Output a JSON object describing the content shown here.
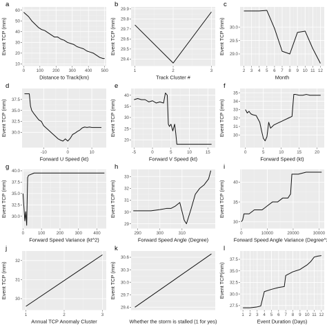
{
  "chart_data": [
    {
      "letter": "a",
      "type": "line",
      "xlabel": "Distance to Track(km)",
      "ylabel": "Event TCP (mm)",
      "xlim": [
        -10,
        510
      ],
      "ylim": [
        8,
        63
      ],
      "xticks": [
        0,
        100,
        200,
        300,
        400,
        500
      ],
      "yticks": [
        10,
        20,
        30,
        40,
        50,
        60
      ],
      "x": [
        0,
        15,
        30,
        50,
        70,
        90,
        110,
        130,
        150,
        170,
        190,
        210,
        230,
        250,
        270,
        290,
        310,
        330,
        350,
        370,
        390,
        410,
        430,
        450,
        470,
        490,
        500
      ],
      "y": [
        58,
        56,
        54,
        50,
        47,
        44,
        42,
        41,
        39,
        37,
        35,
        35,
        33,
        32,
        30,
        29,
        28,
        26,
        25,
        24,
        22,
        21,
        20,
        18,
        16,
        15,
        15
      ]
    },
    {
      "letter": "b",
      "type": "line",
      "xlabel": "Track Cluster #",
      "ylabel": "Event TCP (mm)",
      "xlim": [
        0.9,
        3.1
      ],
      "ylim": [
        29.33,
        29.92
      ],
      "xticks": [
        1,
        2,
        3
      ],
      "yticks": [
        29.4,
        29.5,
        29.6,
        29.7,
        29.8,
        29.9
      ],
      "x": [
        1,
        2,
        3
      ],
      "y": [
        29.74,
        29.36,
        29.87
      ]
    },
    {
      "letter": "c",
      "type": "line",
      "xlabel": "Month",
      "ylabel": "Event TCP (mm)",
      "xlim": [
        1.5,
        12.5
      ],
      "ylim": [
        28.55,
        30.75
      ],
      "xticks": [
        2,
        3,
        4,
        5,
        6,
        7,
        8,
        9,
        10,
        11,
        12
      ],
      "yticks": [
        29.0,
        29.5,
        30.0
      ],
      "x": [
        2,
        3,
        4,
        5,
        6,
        7,
        8,
        9,
        10,
        11,
        12
      ],
      "y": [
        30.6,
        30.6,
        30.6,
        30.62,
        29.95,
        29.1,
        29.0,
        29.8,
        29.85,
        29.2,
        28.65
      ]
    },
    {
      "letter": "d",
      "type": "line",
      "xlabel": "Forward U Speed (kt)",
      "ylabel": "Event TCP (mm)",
      "xlim": [
        -19,
        16
      ],
      "ylim": [
        26.5,
        40
      ],
      "xticks": [
        -10,
        0,
        10
      ],
      "yticks": [
        30.0,
        32.5,
        35.0,
        37.5
      ],
      "x": [
        -18,
        -16,
        -15.5,
        -15,
        -14,
        -13,
        -12,
        -11,
        -10,
        -9,
        -8,
        -7,
        -6,
        -5,
        -4,
        -3,
        -2,
        -1,
        0,
        1,
        2,
        3,
        4,
        5,
        6,
        7,
        8,
        9,
        10,
        11,
        12,
        13,
        14
      ],
      "y": [
        38.8,
        38.8,
        36,
        35,
        34.2,
        33.5,
        32.8,
        32.5,
        31.5,
        31,
        30.5,
        30,
        29.5,
        29,
        28.5,
        28.2,
        28,
        28.5,
        28,
        28.6,
        29.5,
        29.8,
        30.2,
        30.5,
        31,
        31.2,
        31.1,
        31.2,
        31.1,
        31.1,
        31.1,
        31.1,
        31.1
      ]
    },
    {
      "letter": "e",
      "type": "line",
      "xlabel": "Forward V Speed (kt)",
      "ylabel": "Event TCP (mm)",
      "xlim": [
        -5.8,
        17
      ],
      "ylim": [
        16.5,
        43
      ],
      "xticks": [
        -5,
        0,
        5,
        10,
        15
      ],
      "yticks": [
        20,
        25,
        30,
        35,
        40
      ],
      "x": [
        -5,
        -4,
        -3,
        -2,
        -1,
        0,
        1,
        2,
        3,
        3.5,
        4,
        4.3,
        4.6,
        5,
        5.5,
        6,
        6.3,
        6.6,
        7,
        8,
        10,
        12,
        14,
        16
      ],
      "y": [
        38,
        38.5,
        38,
        38,
        37,
        37.5,
        36.5,
        37,
        36.5,
        41,
        40,
        27,
        26,
        27,
        24,
        27,
        23,
        18,
        18,
        18,
        18,
        18,
        18,
        18
      ]
    },
    {
      "letter": "f",
      "type": "line",
      "xlabel": "Forward Speed (kt)",
      "ylabel": "Event TCP (mm)",
      "xlim": [
        -1.5,
        22
      ],
      "ylim": [
        28.5,
        35.5
      ],
      "xticks": [
        0,
        5,
        10,
        15,
        20
      ],
      "yticks": [
        30,
        31,
        32,
        33,
        34,
        35
      ],
      "x": [
        0,
        0.5,
        1,
        1.5,
        2,
        3,
        4,
        4.5,
        5,
        5.5,
        6,
        6.5,
        7,
        8,
        9,
        10,
        11,
        12,
        13,
        13.5,
        14,
        15,
        16,
        17,
        18,
        19,
        20,
        21
      ],
      "y": [
        33,
        32.6,
        32.8,
        32.5,
        32.4,
        32.3,
        31.5,
        30.5,
        29.6,
        29.3,
        29.8,
        31.5,
        30.8,
        31.2,
        31.4,
        31.6,
        31.8,
        32,
        32.2,
        34.8,
        34.8,
        34.7,
        34.7,
        34.8,
        34.7,
        34.7,
        34.7,
        34.7
      ]
    },
    {
      "letter": "g",
      "type": "line",
      "xlabel": "Forward Speed Variance (kt^2)",
      "ylabel": "Event TCP (mm)",
      "xlim": [
        -5,
        450
      ],
      "ylim": [
        27.3,
        40.3
      ],
      "xticks": [
        0,
        100,
        200,
        300,
        400
      ],
      "yticks": [
        30.0,
        32.5,
        35.0,
        37.5,
        40.0
      ],
      "x": [
        0,
        5,
        10,
        15,
        20,
        25,
        30,
        60,
        100,
        200,
        300,
        440
      ],
      "y": [
        35,
        32,
        29,
        31,
        28,
        38.5,
        39,
        39.5,
        39.5,
        39.5,
        39.5,
        39.5
      ]
    },
    {
      "letter": "h",
      "type": "line",
      "xlabel": "Forward Speed Angle (Degree)",
      "ylabel": "Event TCP (mm)",
      "xlim": [
        287,
        325
      ],
      "ylim": [
        28.6,
        33.6
      ],
      "xticks": [
        290,
        300,
        310
      ],
      "yticks": [
        29,
        30,
        31,
        32,
        33
      ],
      "x": [
        288,
        292,
        296,
        300,
        303,
        305,
        307,
        309,
        311,
        312,
        314,
        316,
        318,
        320,
        322,
        323
      ],
      "y": [
        30.1,
        30.1,
        30.1,
        30.2,
        30.3,
        30.3,
        30.5,
        30.8,
        29.3,
        29.0,
        30.2,
        31.5,
        32.0,
        32.3,
        32.8,
        33.5
      ]
    },
    {
      "letter": "i",
      "type": "line",
      "xlabel": "Forward Speed Angle Variance (Degree^2)",
      "ylabel": "Event TCP (mm)",
      "xlim": [
        -500,
        32000
      ],
      "ylim": [
        28.3,
        43.2
      ],
      "xticks": [
        0,
        10000,
        20000,
        30000
      ],
      "yticks": [
        30,
        35,
        40
      ],
      "x": [
        0,
        500,
        1000,
        3000,
        5000,
        8000,
        10000,
        12000,
        14000,
        16000,
        18000,
        19000,
        19500,
        20000,
        22000,
        25000,
        28000,
        31000
      ],
      "y": [
        30,
        30.5,
        32,
        32,
        33,
        33,
        34,
        35,
        35,
        36,
        36,
        37,
        42,
        42,
        42,
        42.5,
        42.5,
        42.5
      ]
    },
    {
      "letter": "j",
      "type": "line",
      "xlabel": "Annual TCP Anomaly Cluster",
      "ylabel": "Event TCP (mm)",
      "xlim": [
        0.9,
        3.1
      ],
      "ylim": [
        29.4,
        32.5
      ],
      "xticks": [
        1,
        2,
        3
      ],
      "yticks": [
        30,
        31,
        32
      ],
      "x": [
        1,
        3
      ],
      "y": [
        29.6,
        32.3
      ]
    },
    {
      "letter": "k",
      "type": "line",
      "xlabel": "Whether the storm is stalled (1 for yes)",
      "ylabel": "Event TCP (mm)",
      "xlim": [
        0,
        1.1
      ],
      "ylim": [
        29.33,
        30.75
      ],
      "xticks": [],
      "yticks": [
        29.4,
        29.7,
        30.0,
        30.3,
        30.6
      ],
      "x": [
        0.05,
        1.05
      ],
      "y": [
        29.4,
        30.68
      ]
    },
    {
      "letter": "l",
      "type": "line",
      "xlabel": "Event Duration (Days)",
      "ylabel": "Event TCP(mm)",
      "xlim": [
        0.6,
        12.4
      ],
      "ylim": [
        26.5,
        39.3
      ],
      "xticks": [
        1,
        2,
        3,
        4,
        5,
        6,
        7,
        8,
        9,
        10,
        11,
        12
      ],
      "yticks": [
        27.5,
        30.0,
        32.5,
        35.0,
        37.5
      ],
      "x": [
        1,
        2,
        3,
        3.5,
        4,
        5,
        6,
        6.8,
        7,
        8,
        9,
        10,
        10.5,
        11,
        11.5,
        12
      ],
      "y": [
        27,
        27,
        27.2,
        27.4,
        30.5,
        31,
        31.4,
        31.6,
        34,
        34.8,
        35.3,
        36.3,
        37,
        38,
        38.2,
        38.3
      ]
    }
  ]
}
